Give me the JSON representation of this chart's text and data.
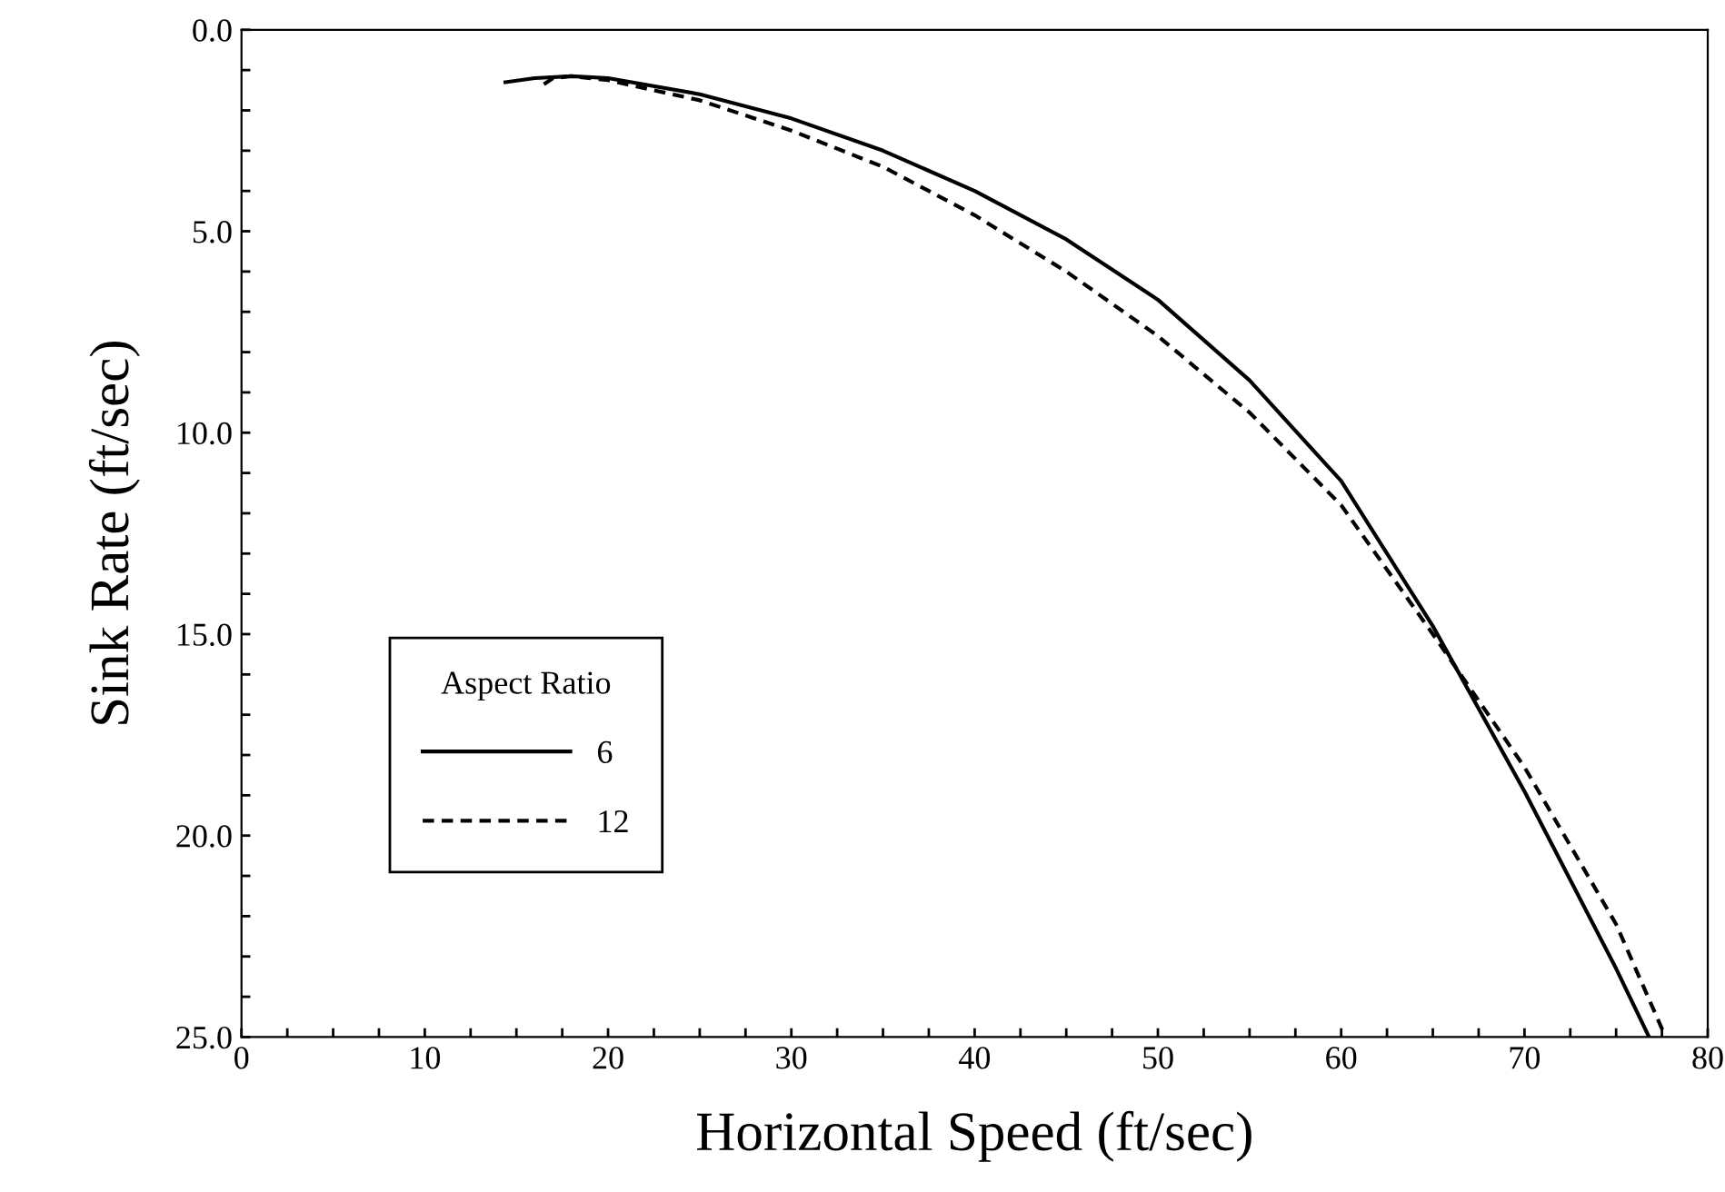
{
  "chart_data": {
    "type": "line",
    "xlabel": "Horizontal Speed (ft/sec)",
    "ylabel": "Sink Rate (ft/sec)",
    "legend_title": "Aspect Ratio",
    "legend": "left",
    "grid": false,
    "xlim": [
      0,
      80
    ],
    "ylim": [
      25,
      0
    ],
    "xticks": [
      0,
      {
        "value": 2.5,
        "label": null
      },
      {
        "value": 5,
        "label": null
      },
      {
        "value": 7.5,
        "label": null
      },
      10,
      {
        "value": 12.5,
        "label": null
      },
      {
        "value": 15,
        "label": null
      },
      {
        "value": 17.5,
        "label": null
      },
      20,
      {
        "value": 22.5,
        "label": null
      },
      {
        "value": 25,
        "label": null
      },
      {
        "value": 27.5,
        "label": null
      },
      30,
      {
        "value": 32.5,
        "label": null
      },
      {
        "value": 35,
        "label": null
      },
      {
        "value": 37.5,
        "label": null
      },
      40,
      {
        "value": 42.5,
        "label": null
      },
      {
        "value": 45,
        "label": null
      },
      {
        "value": 47.5,
        "label": null
      },
      50,
      {
        "value": 52.5,
        "label": null
      },
      {
        "value": 55,
        "label": null
      },
      {
        "value": 57.5,
        "label": null
      },
      60,
      {
        "value": 62.5,
        "label": null
      },
      {
        "value": 65,
        "label": null
      },
      {
        "value": 67.5,
        "label": null
      },
      70,
      {
        "value": 72.5,
        "label": null
      },
      {
        "value": 75,
        "label": null
      },
      {
        "value": 77.5,
        "label": null
      },
      80
    ],
    "yticks": [
      {
        "value": 0,
        "label": "0.0"
      },
      {
        "value": 1,
        "label": null
      },
      {
        "value": 2,
        "label": null
      },
      {
        "value": 3,
        "label": null
      },
      {
        "value": 4,
        "label": null
      },
      {
        "value": 5,
        "label": "5.0"
      },
      {
        "value": 6,
        "label": null
      },
      {
        "value": 7,
        "label": null
      },
      {
        "value": 8,
        "label": null
      },
      {
        "value": 9,
        "label": null
      },
      {
        "value": 10,
        "label": "10.0"
      },
      {
        "value": 11,
        "label": null
      },
      {
        "value": 12,
        "label": null
      },
      {
        "value": 13,
        "label": null
      },
      {
        "value": 14,
        "label": null
      },
      {
        "value": 15,
        "label": "15.0"
      },
      {
        "value": 16,
        "label": null
      },
      {
        "value": 17,
        "label": null
      },
      {
        "value": 18,
        "label": null
      },
      {
        "value": 19,
        "label": null
      },
      {
        "value": 20,
        "label": "20.0"
      },
      {
        "value": 21,
        "label": null
      },
      {
        "value": 22,
        "label": null
      },
      {
        "value": 23,
        "label": null
      },
      {
        "value": 24,
        "label": null
      },
      {
        "value": 25,
        "label": "25.0"
      }
    ],
    "marker": "none",
    "series": [
      {
        "name": "6",
        "color": "#000000",
        "line_style": "solid",
        "x": [
          14.4,
          16,
          18,
          20,
          25,
          30,
          35,
          40,
          45,
          50,
          55,
          60,
          65,
          70,
          75,
          76.8
        ],
        "values": [
          1.3,
          1.2,
          1.15,
          1.2,
          1.6,
          2.2,
          3.0,
          4.0,
          5.2,
          6.7,
          8.7,
          11.2,
          14.8,
          18.9,
          23.3,
          25
        ]
      },
      {
        "name": "12",
        "color": "#000000",
        "line_style": "dashed",
        "x": [
          16.5,
          17,
          18,
          20,
          25,
          30,
          35,
          40,
          45,
          50,
          55,
          60,
          65,
          70,
          75,
          77.7
        ],
        "values": [
          1.35,
          1.2,
          1.15,
          1.25,
          1.75,
          2.5,
          3.4,
          4.6,
          6.0,
          7.6,
          9.5,
          11.8,
          15.0,
          18.3,
          22.2,
          25
        ]
      }
    ]
  }
}
